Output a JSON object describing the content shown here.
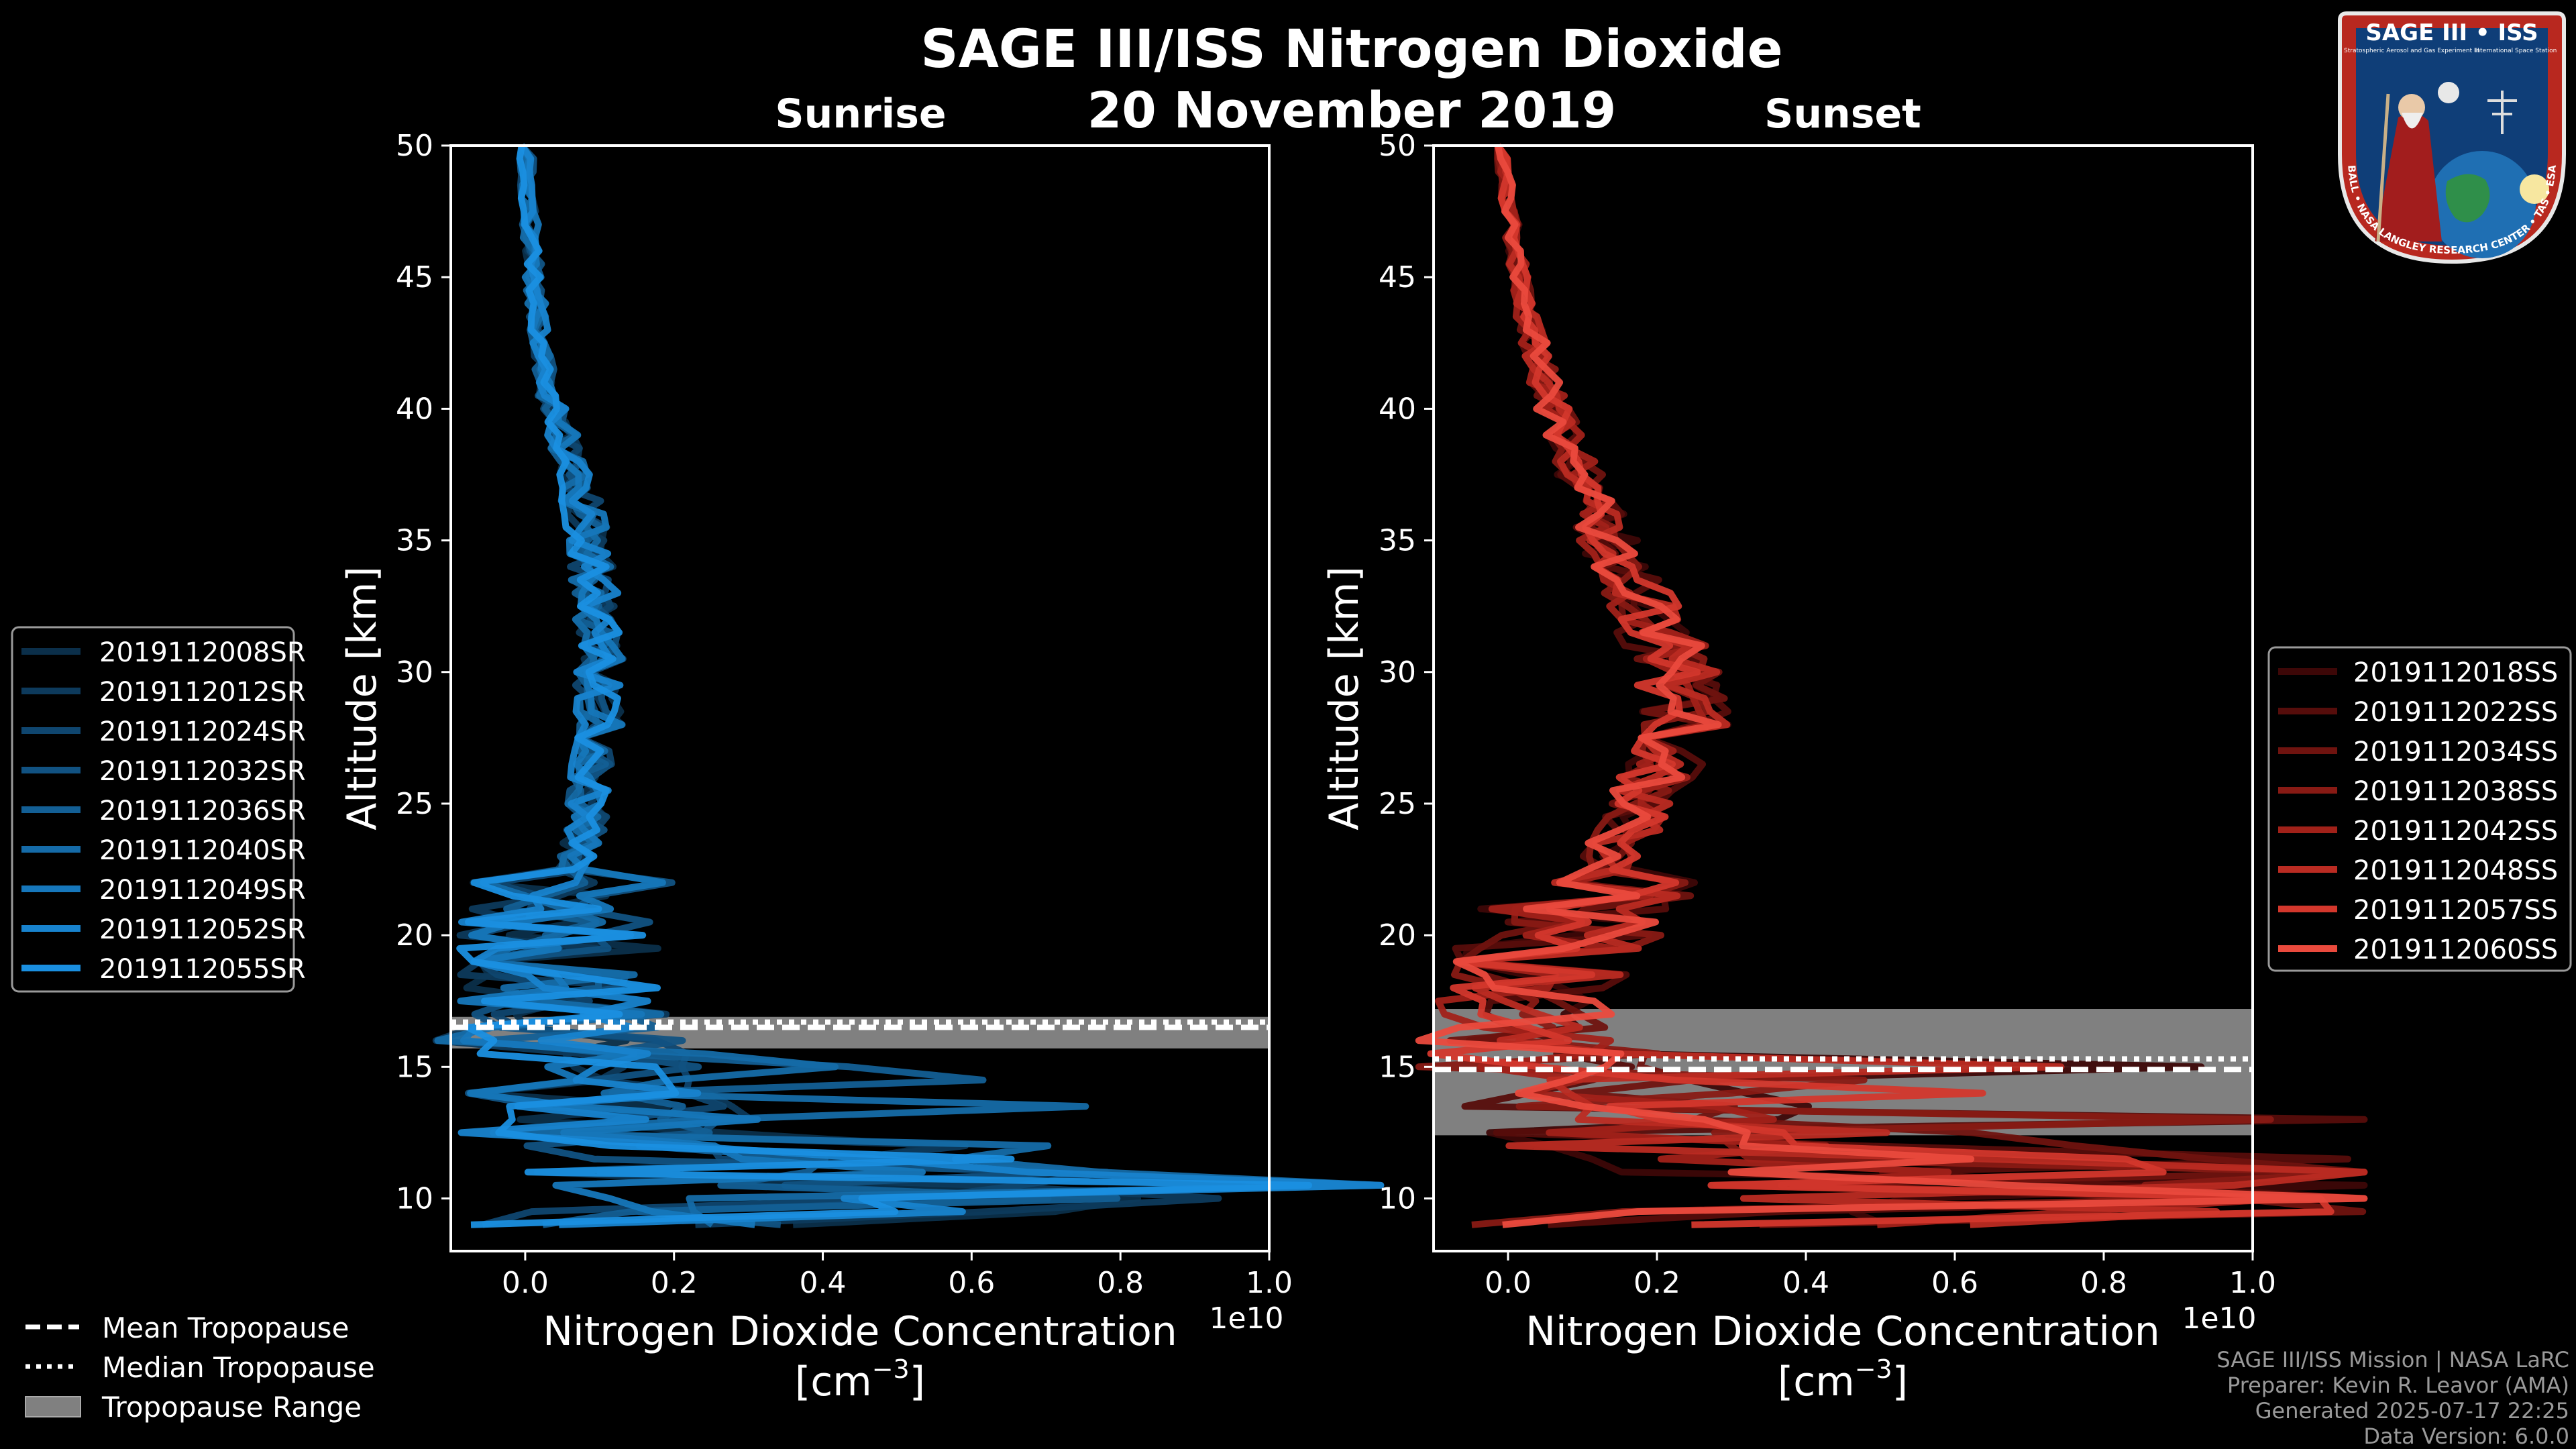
{
  "header": {
    "title": "SAGE III/ISS Nitrogen Dioxide",
    "date": "20 November 2019",
    "left_panel_title": "Sunrise",
    "right_panel_title": "Sunset"
  },
  "logo": {
    "text_top": "SAGE III • ISS",
    "text_sub1": "Stratospheric Aerosol and Gas Experiment III",
    "text_sub2": "International Space Station",
    "text_ring": "BALL • NASA LANGLEY RESEARCH CENTER • TAS • ESA"
  },
  "legend_tropopause": {
    "mean": "Mean Tropopause",
    "median": "Median Tropopause",
    "range": "Tropopause Range"
  },
  "footer": {
    "line1": "SAGE III/ISS Mission | NASA LaRC",
    "line2": "Preparer: Kevin R. Leavor (AMA)",
    "line3": "Generated 2025-07-17 22:25",
    "line4": "Data Version: 6.0.0"
  },
  "colors": {
    "background": "#000000",
    "sunrise_series": [
      "#0b2f4a",
      "#0d3a5c",
      "#0f466f",
      "#115282",
      "#135f95",
      "#156ba8",
      "#1677bb",
      "#1883ce",
      "#1a8fe0"
    ],
    "sunset_series": [
      "#3d0707",
      "#560d0b",
      "#6f130f",
      "#881a14",
      "#a12119",
      "#ba2b22",
      "#d3372c",
      "#ea4a3d"
    ],
    "tropopause_range": "#808080"
  },
  "chart_data": [
    {
      "type": "line",
      "panel": "Sunrise",
      "xlabel": "Nitrogen Dioxide Concentration",
      "xlabel_unit": "[cm",
      "xlabel_exp": "−3",
      "xlabel_close": "]",
      "x_multiplier_label": "1e10",
      "ylabel": "Altitude [km]",
      "xlim": [
        -0.1,
        1.0
      ],
      "ylim": [
        8,
        50
      ],
      "x_ticks": [
        0.0,
        0.2,
        0.4,
        0.6,
        0.8,
        1.0
      ],
      "x_tick_labels": [
        "0.0",
        "0.2",
        "0.4",
        "0.6",
        "0.8",
        "1.0"
      ],
      "y_ticks": [
        10,
        15,
        20,
        25,
        30,
        35,
        40,
        45,
        50
      ],
      "y_tick_labels": [
        "10",
        "15",
        "20",
        "25",
        "30",
        "35",
        "40",
        "45",
        "50"
      ],
      "legend_position": "left",
      "tropopause": {
        "mean": 16.5,
        "median": 16.7,
        "range": [
          15.7,
          16.9
        ]
      },
      "series": [
        {
          "name": "2019112008SR",
          "seed": 11
        },
        {
          "name": "2019112012SR",
          "seed": 23
        },
        {
          "name": "2019112024SR",
          "seed": 37
        },
        {
          "name": "2019112032SR",
          "seed": 41
        },
        {
          "name": "2019112036SR",
          "seed": 53
        },
        {
          "name": "2019112040SR",
          "seed": 67
        },
        {
          "name": "2019112049SR",
          "seed": 71
        },
        {
          "name": "2019112052SR",
          "seed": 83
        },
        {
          "name": "2019112055SR",
          "seed": 97
        }
      ],
      "mean_profile": {
        "altitude": [
          50,
          48,
          46,
          44,
          42,
          40,
          38,
          36,
          34,
          32,
          30,
          28,
          26,
          24,
          22,
          21,
          20,
          19,
          18,
          17,
          16,
          15,
          14,
          13,
          12,
          11.5,
          11,
          10.5,
          10,
          9.5,
          9
        ],
        "no2": [
          0.0,
          0.005,
          0.01,
          0.015,
          0.02,
          0.04,
          0.06,
          0.08,
          0.09,
          0.1,
          0.1,
          0.1,
          0.09,
          0.08,
          0.06,
          0.05,
          0.04,
          0.04,
          0.05,
          0.05,
          0.05,
          0.05,
          0.07,
          0.1,
          0.15,
          0.3,
          0.45,
          0.55,
          0.5,
          0.35,
          0.15
        ]
      }
    },
    {
      "type": "line",
      "panel": "Sunset",
      "xlabel": "Nitrogen Dioxide Concentration",
      "xlabel_unit": "[cm",
      "xlabel_exp": "−3",
      "xlabel_close": "]",
      "x_multiplier_label": "1e10",
      "ylabel": "Altitude [km]",
      "xlim": [
        -0.1,
        1.0
      ],
      "ylim": [
        8,
        50
      ],
      "x_ticks": [
        0.0,
        0.2,
        0.4,
        0.6,
        0.8,
        1.0
      ],
      "x_tick_labels": [
        "0.0",
        "0.2",
        "0.4",
        "0.6",
        "0.8",
        "1.0"
      ],
      "y_ticks": [
        10,
        15,
        20,
        25,
        30,
        35,
        40,
        45,
        50
      ],
      "y_tick_labels": [
        "10",
        "15",
        "20",
        "25",
        "30",
        "35",
        "40",
        "45",
        "50"
      ],
      "legend_position": "right",
      "tropopause": {
        "mean": 14.9,
        "median": 15.3,
        "range": [
          12.4,
          17.2
        ]
      },
      "series": [
        {
          "name": "2019112018SS",
          "seed": 13
        },
        {
          "name": "2019112022SS",
          "seed": 29
        },
        {
          "name": "2019112034SS",
          "seed": 31
        },
        {
          "name": "2019112038SS",
          "seed": 43
        },
        {
          "name": "2019112042SS",
          "seed": 59
        },
        {
          "name": "2019112048SS",
          "seed": 61
        },
        {
          "name": "2019112057SS",
          "seed": 73
        },
        {
          "name": "2019112060SS",
          "seed": 89
        }
      ],
      "mean_profile": {
        "altitude": [
          50,
          48,
          46,
          44,
          42,
          40,
          38,
          36,
          34,
          32,
          30,
          28,
          26,
          24,
          22,
          21,
          20,
          19,
          18,
          17,
          16,
          15,
          14,
          13,
          12,
          11.5,
          11,
          10.5,
          10,
          9.5,
          9
        ],
        "no2": [
          -0.01,
          0.0,
          0.01,
          0.02,
          0.04,
          0.06,
          0.09,
          0.12,
          0.15,
          0.19,
          0.23,
          0.24,
          0.2,
          0.16,
          0.12,
          0.1,
          0.07,
          0.04,
          0.02,
          0.01,
          0.02,
          0.05,
          0.1,
          0.2,
          0.4,
          0.6,
          0.75,
          0.85,
          0.8,
          0.6,
          0.3
        ]
      }
    }
  ]
}
